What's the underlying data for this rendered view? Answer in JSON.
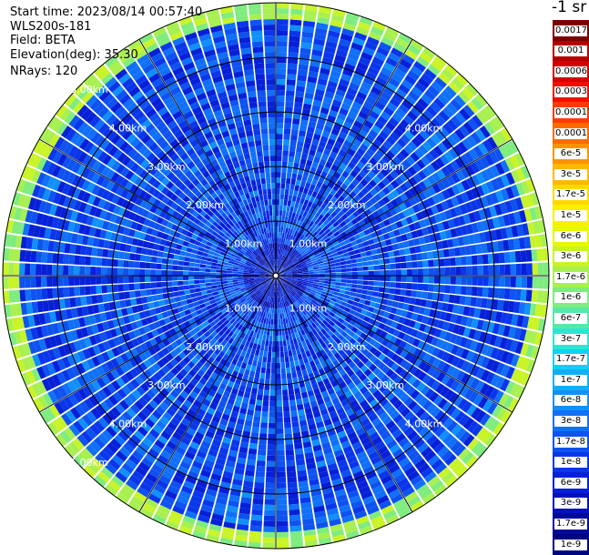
{
  "info": {
    "start_time": "Start time: 2023/08/14 00:57:40",
    "device": "WLS200s-181",
    "field": "Field: BETA",
    "elevation": "Elevation(deg): 35.30",
    "nrays": "NRays: 120"
  },
  "colorbar": {
    "unit_label": "-1 sr",
    "labels": [
      "0.0017",
      "0.001",
      "0.0006",
      "0.0003",
      "0.00017",
      "0.0001",
      "6e-5",
      "3e-5",
      "1.7e-5",
      "1e-5",
      "6e-6",
      "3e-6",
      "1.7e-6",
      "1e-6",
      "6e-7",
      "3e-7",
      "1.7e-7",
      "1e-7",
      "6e-8",
      "3e-8",
      "1.7e-8",
      "1e-8",
      "6e-9",
      "3e-9",
      "1.7e-9",
      "1e-9"
    ],
    "colors": [
      "#7a0000",
      "#b20000",
      "#d40000",
      "#f01000",
      "#ff3a00",
      "#ff6a00",
      "#ff9200",
      "#ffb800",
      "#ffd800",
      "#f8f000",
      "#e6f800",
      "#c8f428",
      "#a8f050",
      "#7eec7e",
      "#56e8a8",
      "#2ee6d0",
      "#12d0f0",
      "#10aef8",
      "#1090f8",
      "#1070f8",
      "#0e52f0",
      "#0a36ea",
      "#0620d8",
      "#0412bc",
      "#020a9a",
      "#000680"
    ]
  },
  "chart_data": {
    "type": "heatmap",
    "projection": "polar PPI (plan position indicator)",
    "field": "BETA",
    "n_rays": 120,
    "range_ring_labels": [
      "1.00km",
      "2.00km",
      "3.00km",
      "4.00km",
      "5.00km"
    ],
    "range_rings_km": [
      1,
      2,
      3,
      4,
      5
    ],
    "max_range_km": 5,
    "color_scale": "log",
    "cmin": 1e-09,
    "cmax": 0.0017,
    "background_level": 1.7e-08,
    "far_range_level": 1.7e-06
  }
}
